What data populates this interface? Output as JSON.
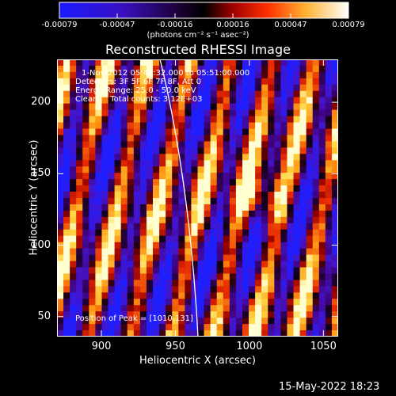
{
  "colorbar": {
    "ticks": [
      "-0.00079",
      "-0.00047",
      "-0.00016",
      "0.00016",
      "0.00047",
      "0.00079"
    ],
    "units": "(photons cm⁻² s⁻¹ asec⁻²)",
    "colors": [
      "#1a1aff",
      "#4a00a0",
      "#000000",
      "#b00000",
      "#ff5000",
      "#ffd040",
      "#ffffff"
    ]
  },
  "chart_data": {
    "type": "heatmap",
    "title": "Reconstructed RHESSI Image",
    "xlabel": "Heliocentric X (arcsec)",
    "ylabel": "Heliocentric Y (arcsec)",
    "xlim": [
      870,
      1060
    ],
    "ylim": [
      36,
      230
    ],
    "x_ticks": [
      900,
      950,
      1000,
      1050
    ],
    "y_ticks": [
      50,
      100,
      150,
      200
    ],
    "color_range": [
      -0.00079,
      0.00079
    ],
    "peak": [
      1010,
      131
    ],
    "annotations": [
      "1-Nov-2012 05:48:32.000 to 05:51:00.000",
      "Detectors: 3F 5F 6F 7F 8F, Att 0",
      "Energy Range: 25.0 - 50.0 keV",
      "Clean     Total counts: 3.12E+03"
    ],
    "peak_label": "Position of Peak = [1010,131]"
  },
  "timestamp": "15-May-2022 18:23"
}
